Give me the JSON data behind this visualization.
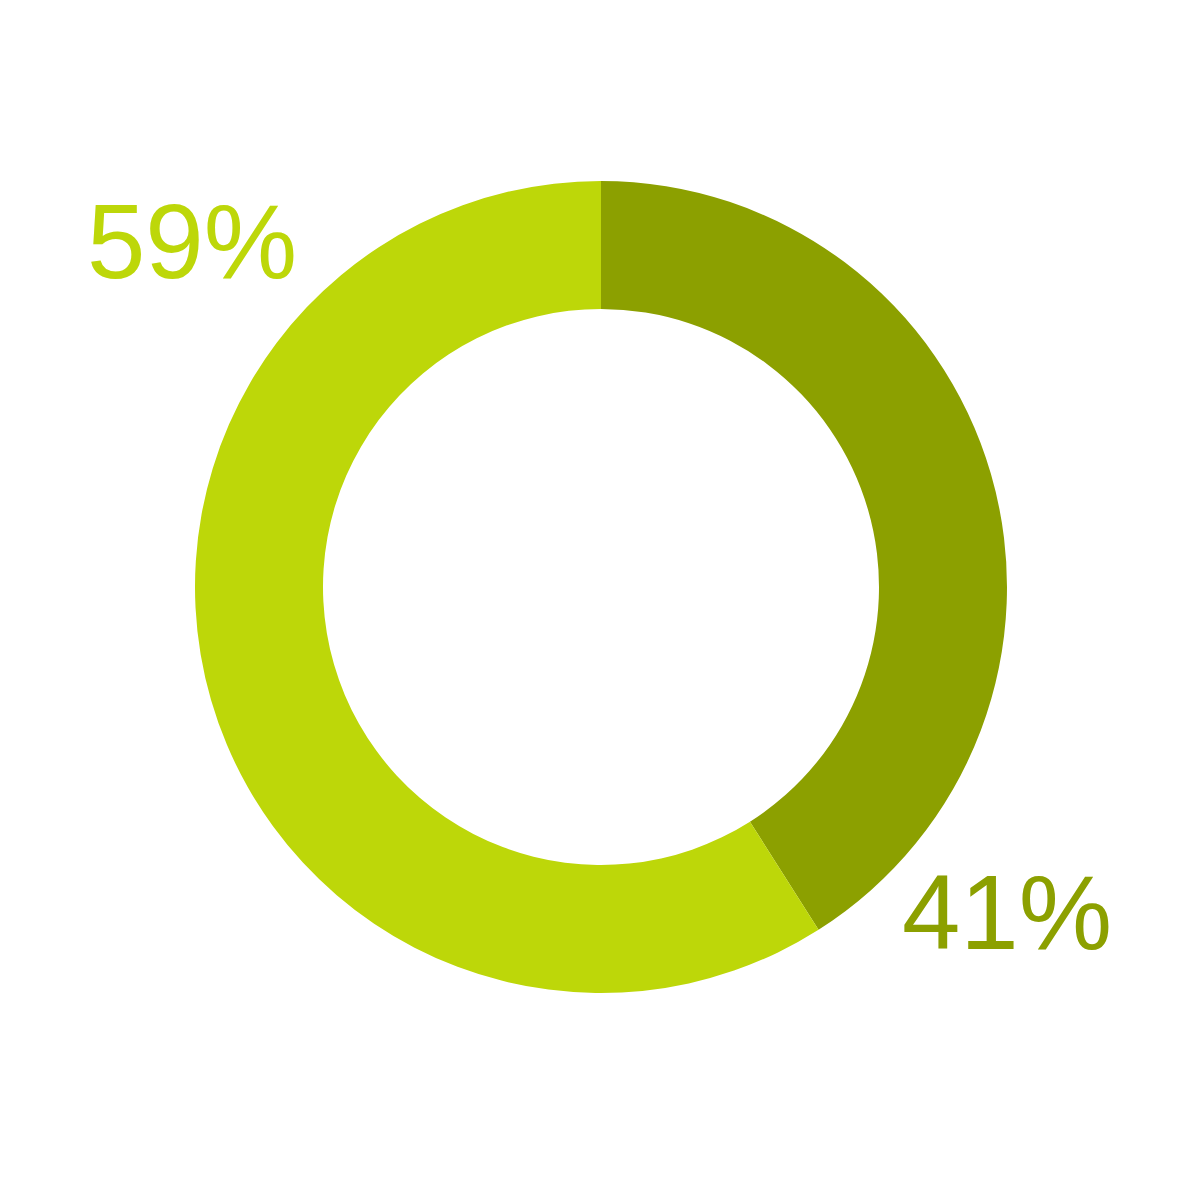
{
  "chart_data": {
    "type": "donut",
    "categories": [
      null,
      null
    ],
    "values": [
      41,
      59
    ],
    "colors": [
      "#8ca000",
      "#bdd709"
    ],
    "value_labels": [
      "41%",
      "59%"
    ]
  }
}
